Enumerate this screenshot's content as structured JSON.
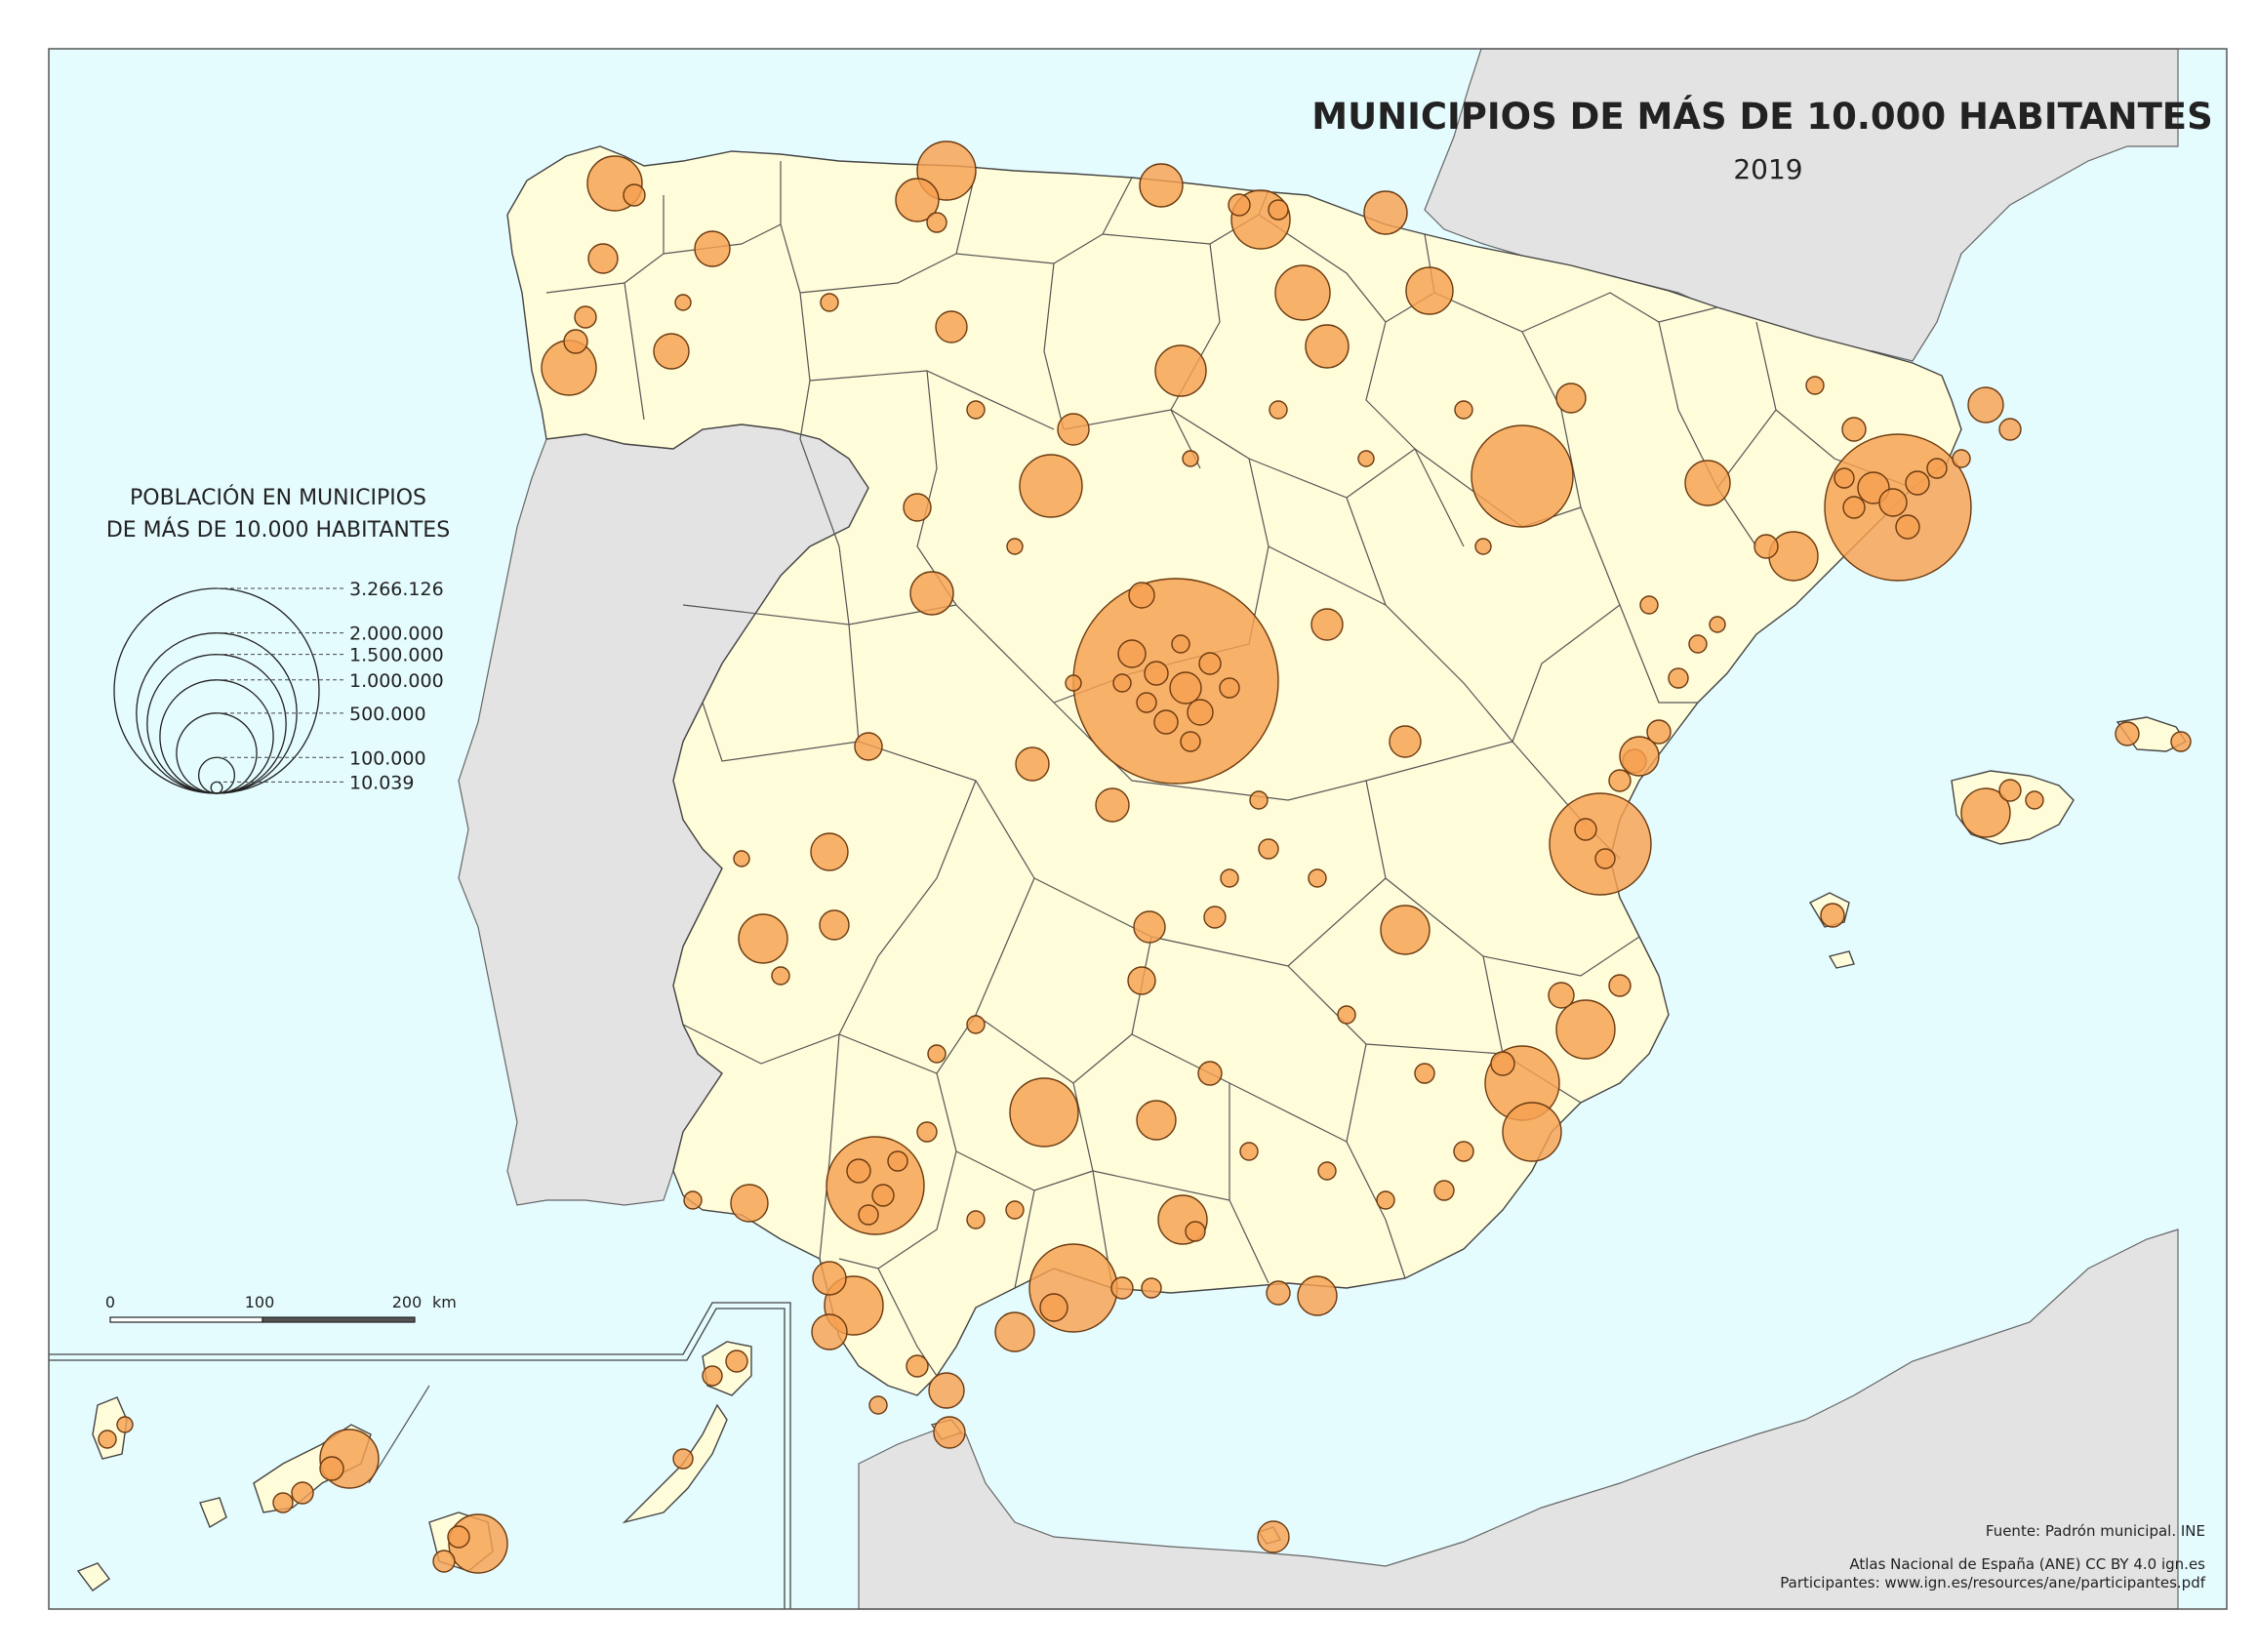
{
  "map": {
    "title": "MUNICIPIOS DE MÁS DE 10.000 HABITANTES",
    "year": "2019",
    "colors": {
      "sea": "#e5fcff",
      "land": "#fffcd9",
      "neighbors": "#e3e3e3",
      "bubble": "#f7a050"
    }
  },
  "legend": {
    "title_line1": "POBLACIÓN EN MUNICIPIOS",
    "title_line2": "DE MÁS DE 10.000 HABITANTES",
    "entries": [
      {
        "label": "3.266.126",
        "value": 3266126
      },
      {
        "label": "2.000.000",
        "value": 2000000
      },
      {
        "label": "1.500.000",
        "value": 1500000
      },
      {
        "label": "1.000.000",
        "value": 1000000
      },
      {
        "label": "500.000",
        "value": 500000
      },
      {
        "label": "100.000",
        "value": 100000
      },
      {
        "label": "10.039",
        "value": 10039
      }
    ]
  },
  "scale_bar": {
    "labels": [
      "0",
      "100",
      "200"
    ],
    "unit": "km"
  },
  "credits": {
    "source": "Fuente: Padrón municipal. INE",
    "atlas": "Atlas Nacional de España (ANE) CC BY 4.0 ign.es",
    "participants": "Participantes: www.ign.es/resources/ane/participantes.pdf"
  }
}
